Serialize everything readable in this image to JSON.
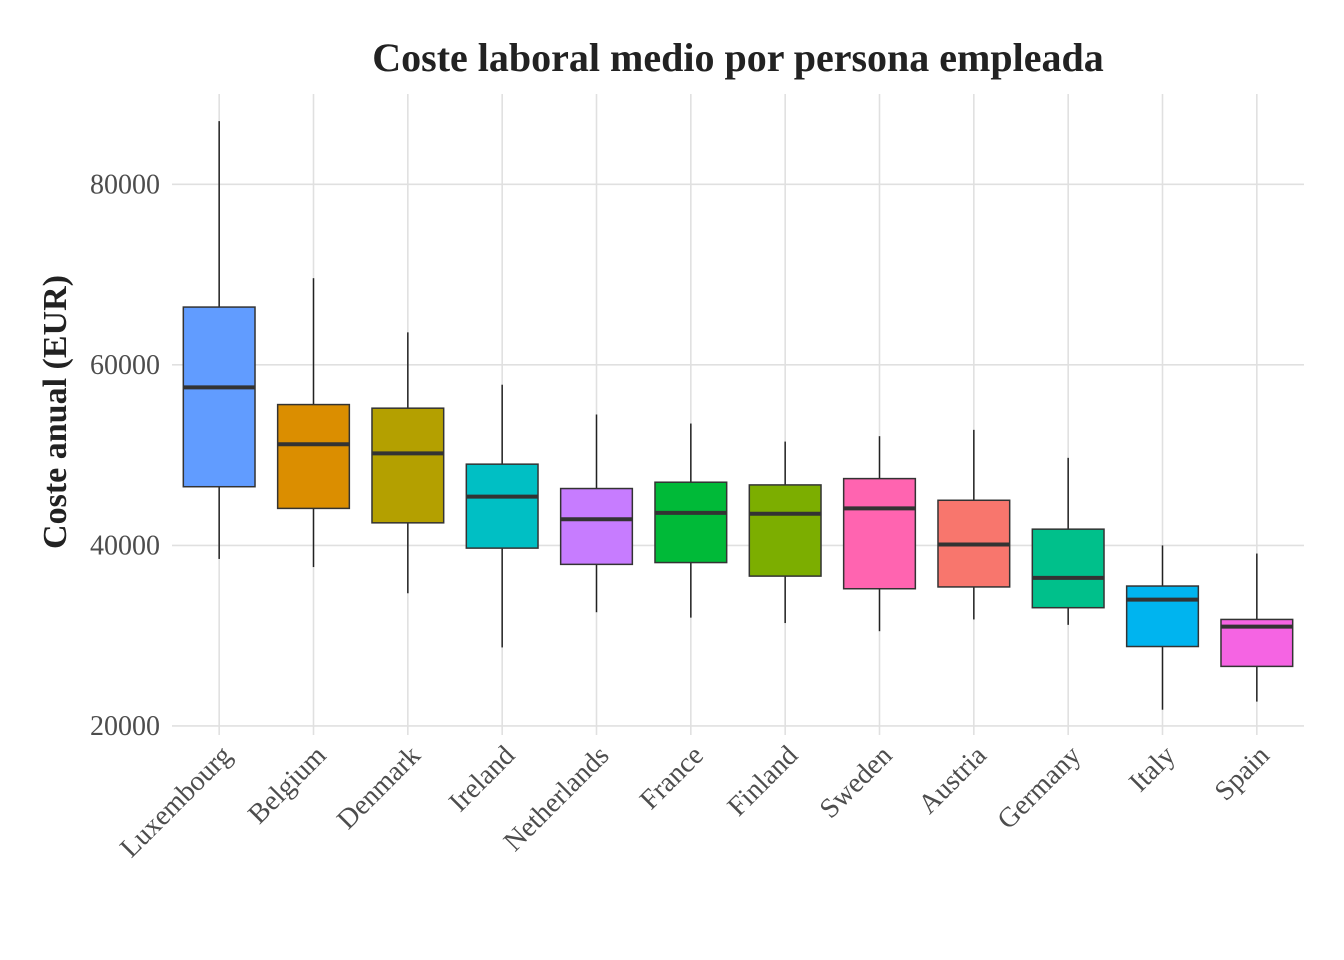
{
  "chart_data": {
    "type": "boxplot",
    "title": "Coste laboral medio por persona empleada",
    "xlabel": "",
    "ylabel": "Coste anual (EUR)",
    "ylim": [
      19000,
      90000
    ],
    "yticks": [
      20000,
      40000,
      60000,
      80000
    ],
    "grid": true,
    "legend": "none",
    "categories": [
      "Luxembourg",
      "Belgium",
      "Denmark",
      "Ireland",
      "Netherlands",
      "France",
      "Finland",
      "Sweden",
      "Austria",
      "Germany",
      "Italy",
      "Spain"
    ],
    "series": [
      {
        "category": "Luxembourg",
        "min": 38500,
        "q1": 46500,
        "median": 57500,
        "q3": 66400,
        "max": 87000,
        "color": "#619CFF"
      },
      {
        "category": "Belgium",
        "min": 37600,
        "q1": 44100,
        "median": 51200,
        "q3": 55600,
        "max": 69600,
        "color": "#DB8E00"
      },
      {
        "category": "Denmark",
        "min": 34700,
        "q1": 42500,
        "median": 50200,
        "q3": 55200,
        "max": 63600,
        "color": "#B4A000"
      },
      {
        "category": "Ireland",
        "min": 28700,
        "q1": 39700,
        "median": 45400,
        "q3": 49000,
        "max": 57800,
        "color": "#00BFC4"
      },
      {
        "category": "Netherlands",
        "min": 32600,
        "q1": 37900,
        "median": 42900,
        "q3": 46300,
        "max": 54500,
        "color": "#C77CFF"
      },
      {
        "category": "France",
        "min": 32000,
        "q1": 38100,
        "median": 43600,
        "q3": 47000,
        "max": 53500,
        "color": "#00BA38"
      },
      {
        "category": "Finland",
        "min": 31400,
        "q1": 36600,
        "median": 43500,
        "q3": 46700,
        "max": 51500,
        "color": "#7CAE00"
      },
      {
        "category": "Sweden",
        "min": 30500,
        "q1": 35200,
        "median": 44100,
        "q3": 47400,
        "max": 52100,
        "color": "#FF64B0"
      },
      {
        "category": "Austria",
        "min": 31800,
        "q1": 35400,
        "median": 40100,
        "q3": 45000,
        "max": 52800,
        "color": "#F8766D"
      },
      {
        "category": "Germany",
        "min": 31200,
        "q1": 33100,
        "median": 36400,
        "q3": 41800,
        "max": 49700,
        "color": "#00C08B"
      },
      {
        "category": "Italy",
        "min": 21800,
        "q1": 28800,
        "median": 34000,
        "q3": 35500,
        "max": 40000,
        "color": "#00B4EF"
      },
      {
        "category": "Spain",
        "min": 22700,
        "q1": 26600,
        "median": 31000,
        "q3": 31800,
        "max": 39100,
        "color": "#F564E3"
      }
    ]
  }
}
